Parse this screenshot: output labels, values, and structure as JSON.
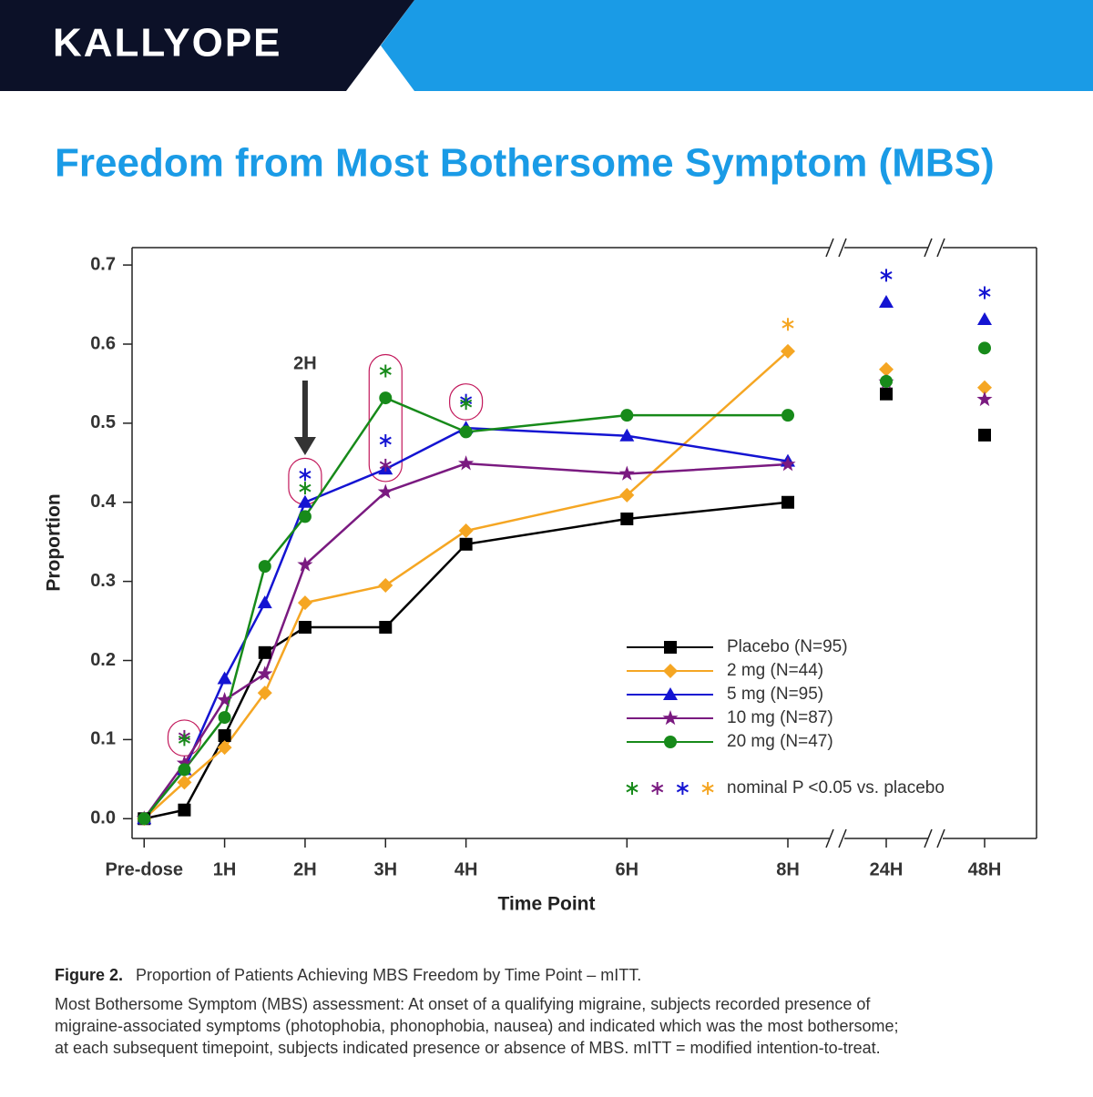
{
  "header": {
    "brand": "KALLYOPE"
  },
  "chart_data": {
    "type": "line",
    "title": "Freedom from Most Bothersome Symptom (MBS)",
    "x_label": "Time Point",
    "y_label": "Proportion",
    "x": [
      0,
      0.5,
      1,
      1.5,
      2,
      3,
      4,
      6,
      8,
      24,
      48
    ],
    "xlim": [
      -0.15,
      48
    ],
    "xticks": [
      {
        "value": 0,
        "label": "Pre-dose"
      },
      {
        "value": 1,
        "label": "1H"
      },
      {
        "value": 2,
        "label": "2H"
      },
      {
        "value": 3,
        "label": "3H"
      },
      {
        "value": 4,
        "label": "4H"
      },
      {
        "value": 6,
        "label": "6H"
      },
      {
        "value": 8,
        "label": "8H"
      },
      {
        "value": 24,
        "label": "24H"
      },
      {
        "value": 48,
        "label": "48H"
      }
    ],
    "ylim": [
      -0.025,
      0.722
    ],
    "yticks": [
      {
        "value": 0,
        "label": "0.0"
      },
      0.1,
      0.2,
      0.3,
      0.4,
      0.5,
      0.6,
      0.7
    ],
    "series": [
      {
        "name": "Placebo (N=95)",
        "color": "#000000",
        "marker": "square",
        "values": [
          0,
          0.011,
          0.105,
          0.21,
          0.242,
          0.242,
          0.347,
          0.379,
          0.4,
          0.537,
          0.485
        ],
        "significance": [
          null,
          null,
          null,
          null,
          null,
          null,
          null,
          null,
          null,
          null,
          null
        ]
      },
      {
        "name": "2 mg (N=44)",
        "color": "#f5a623",
        "marker": "diamond",
        "values": [
          0,
          0.046,
          0.09,
          0.159,
          0.273,
          0.295,
          0.364,
          0.409,
          0.591,
          0.568,
          0.545
        ],
        "significance": [
          null,
          null,
          null,
          null,
          null,
          null,
          null,
          null,
          0.625,
          null,
          null
        ]
      },
      {
        "name": "5 mg (N=95)",
        "color": "#1414d2",
        "marker": "triangle",
        "values": [
          0,
          0.062,
          0.177,
          0.273,
          0.4,
          0.442,
          0.494,
          0.484,
          0.452,
          0.653,
          0.631
        ],
        "significance": [
          null,
          null,
          null,
          null,
          0.435,
          0.478,
          0.529,
          null,
          null,
          0.687,
          0.665
        ]
      },
      {
        "name": "10 mg (N=87)",
        "color": "#7a1a80",
        "marker": "star",
        "values": [
          0,
          0.07,
          0.15,
          0.183,
          0.321,
          0.413,
          0.449,
          0.436,
          0.448,
          0.552,
          0.53
        ],
        "significance": [
          null,
          0.104,
          null,
          null,
          null,
          0.447,
          null,
          null,
          null,
          null,
          null
        ]
      },
      {
        "name": "20 mg (N=47)",
        "color": "#178a1a",
        "marker": "circle",
        "values": [
          0,
          0.062,
          0.128,
          0.319,
          0.382,
          0.532,
          0.489,
          0.51,
          0.51,
          0.553,
          0.595
        ],
        "significance": [
          null,
          0.1,
          null,
          null,
          0.418,
          0.566,
          0.525,
          null,
          null,
          null,
          null
        ]
      }
    ],
    "annotation": {
      "text": "2H",
      "x": 2
    },
    "significance_note": "nominal P <0.05 vs. placebo",
    "significance_order": [
      4,
      3,
      2,
      1
    ],
    "caption": {
      "label": "Figure 2.",
      "text": "Proportion of Patients Achieving MBS Freedom by Time Point – mITT.",
      "lines": [
        "Most Bothersome Symptom (MBS) assessment: At onset of a qualifying migraine, subjects recorded presence of",
        "migraine-associated symptoms (photophobia, phonophobia, nausea) and indicated which was the most bothersome;",
        "at each subsequent timepoint, subjects indicated presence or absence of MBS. mITT = modified intention-to-treat."
      ]
    }
  }
}
